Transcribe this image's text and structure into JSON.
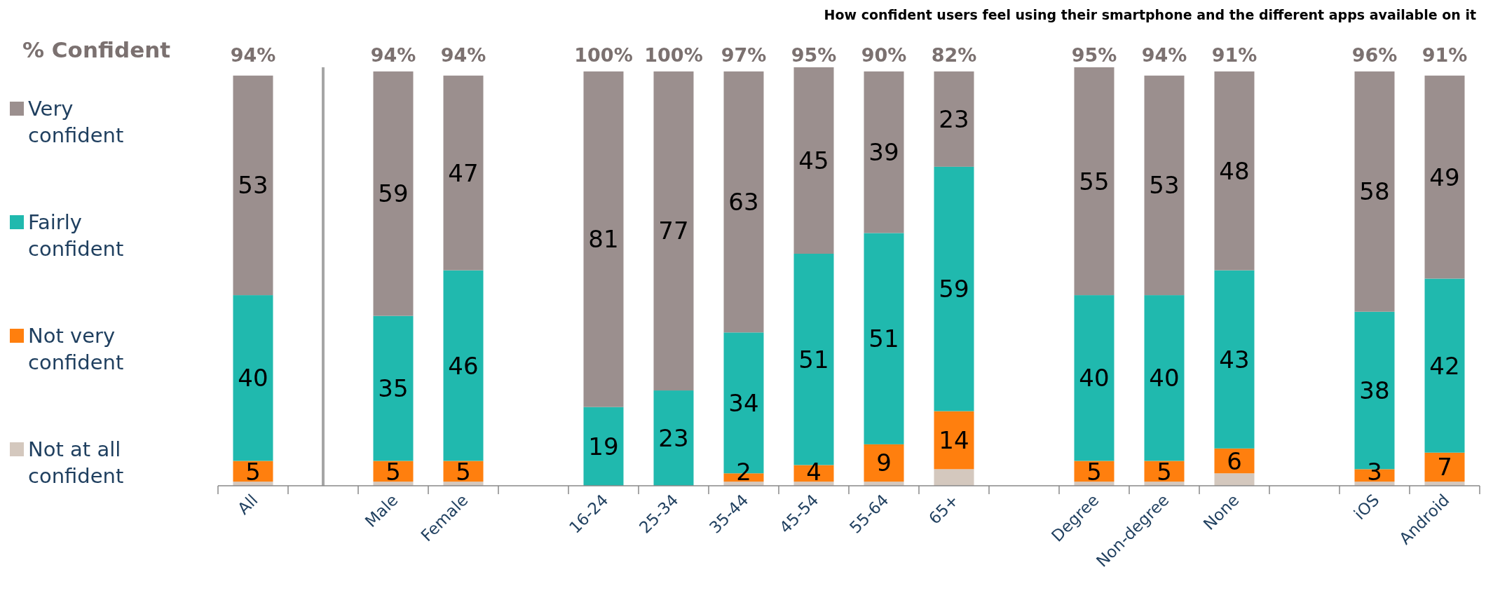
{
  "chart_data": {
    "type": "bar",
    "stacked": true,
    "title": "How confident users feel using their smartphone and the different apps available on it",
    "legend_title": "% Confident",
    "legend": "left",
    "categories": [
      "All",
      null,
      "Male",
      "Female",
      null,
      "16-24",
      "25-34",
      "35-44",
      "45-54",
      "55-64",
      "65+",
      null,
      "Degree",
      "Non-degree",
      "None",
      null,
      "iOS",
      "Android"
    ],
    "ylim": [
      0,
      101
    ],
    "tick_labels": "x",
    "series": [
      {
        "name": "Not at all confident",
        "color": "#d4c8be",
        "values": [
          1,
          null,
          1,
          1,
          null,
          null,
          null,
          1,
          1,
          1,
          4,
          null,
          1,
          1,
          3,
          null,
          1,
          1
        ]
      },
      {
        "name": "Not very confident",
        "color": "#ff7f0e",
        "values": [
          5,
          null,
          5,
          5,
          null,
          null,
          null,
          2,
          4,
          9,
          14,
          null,
          5,
          5,
          6,
          null,
          3,
          7
        ],
        "value_labels": [
          "5",
          null,
          "5",
          "5",
          null,
          null,
          null,
          "2",
          "4",
          "9",
          "14",
          null,
          "5",
          "5",
          "6",
          null,
          "3",
          "7"
        ]
      },
      {
        "name": "Fairly confident",
        "color": "#20b9ae",
        "values": [
          40,
          null,
          35,
          46,
          null,
          19,
          23,
          34,
          51,
          51,
          59,
          null,
          40,
          40,
          43,
          null,
          38,
          42
        ],
        "value_labels": [
          "40",
          null,
          "35",
          "46",
          null,
          "19",
          "23",
          "34",
          "51",
          "51",
          "59",
          null,
          "40",
          "40",
          "43",
          null,
          "38",
          "42"
        ]
      },
      {
        "name": "Very confident",
        "color": "#9b8f8e",
        "values": [
          53,
          null,
          59,
          47,
          null,
          81,
          77,
          63,
          45,
          39,
          23,
          null,
          55,
          53,
          48,
          null,
          58,
          49
        ],
        "value_labels": [
          "53",
          null,
          "59",
          "47",
          null,
          "81",
          "77",
          "63",
          "45",
          "39",
          "23",
          null,
          "55",
          "53",
          "48",
          null,
          "58",
          "49"
        ]
      }
    ],
    "annotations": [
      "94%",
      "94%",
      "94%",
      "100%",
      "100%",
      "97%",
      "95%",
      "90%",
      "82%",
      "95%",
      "94%",
      "91%",
      "96%",
      "91%"
    ]
  }
}
